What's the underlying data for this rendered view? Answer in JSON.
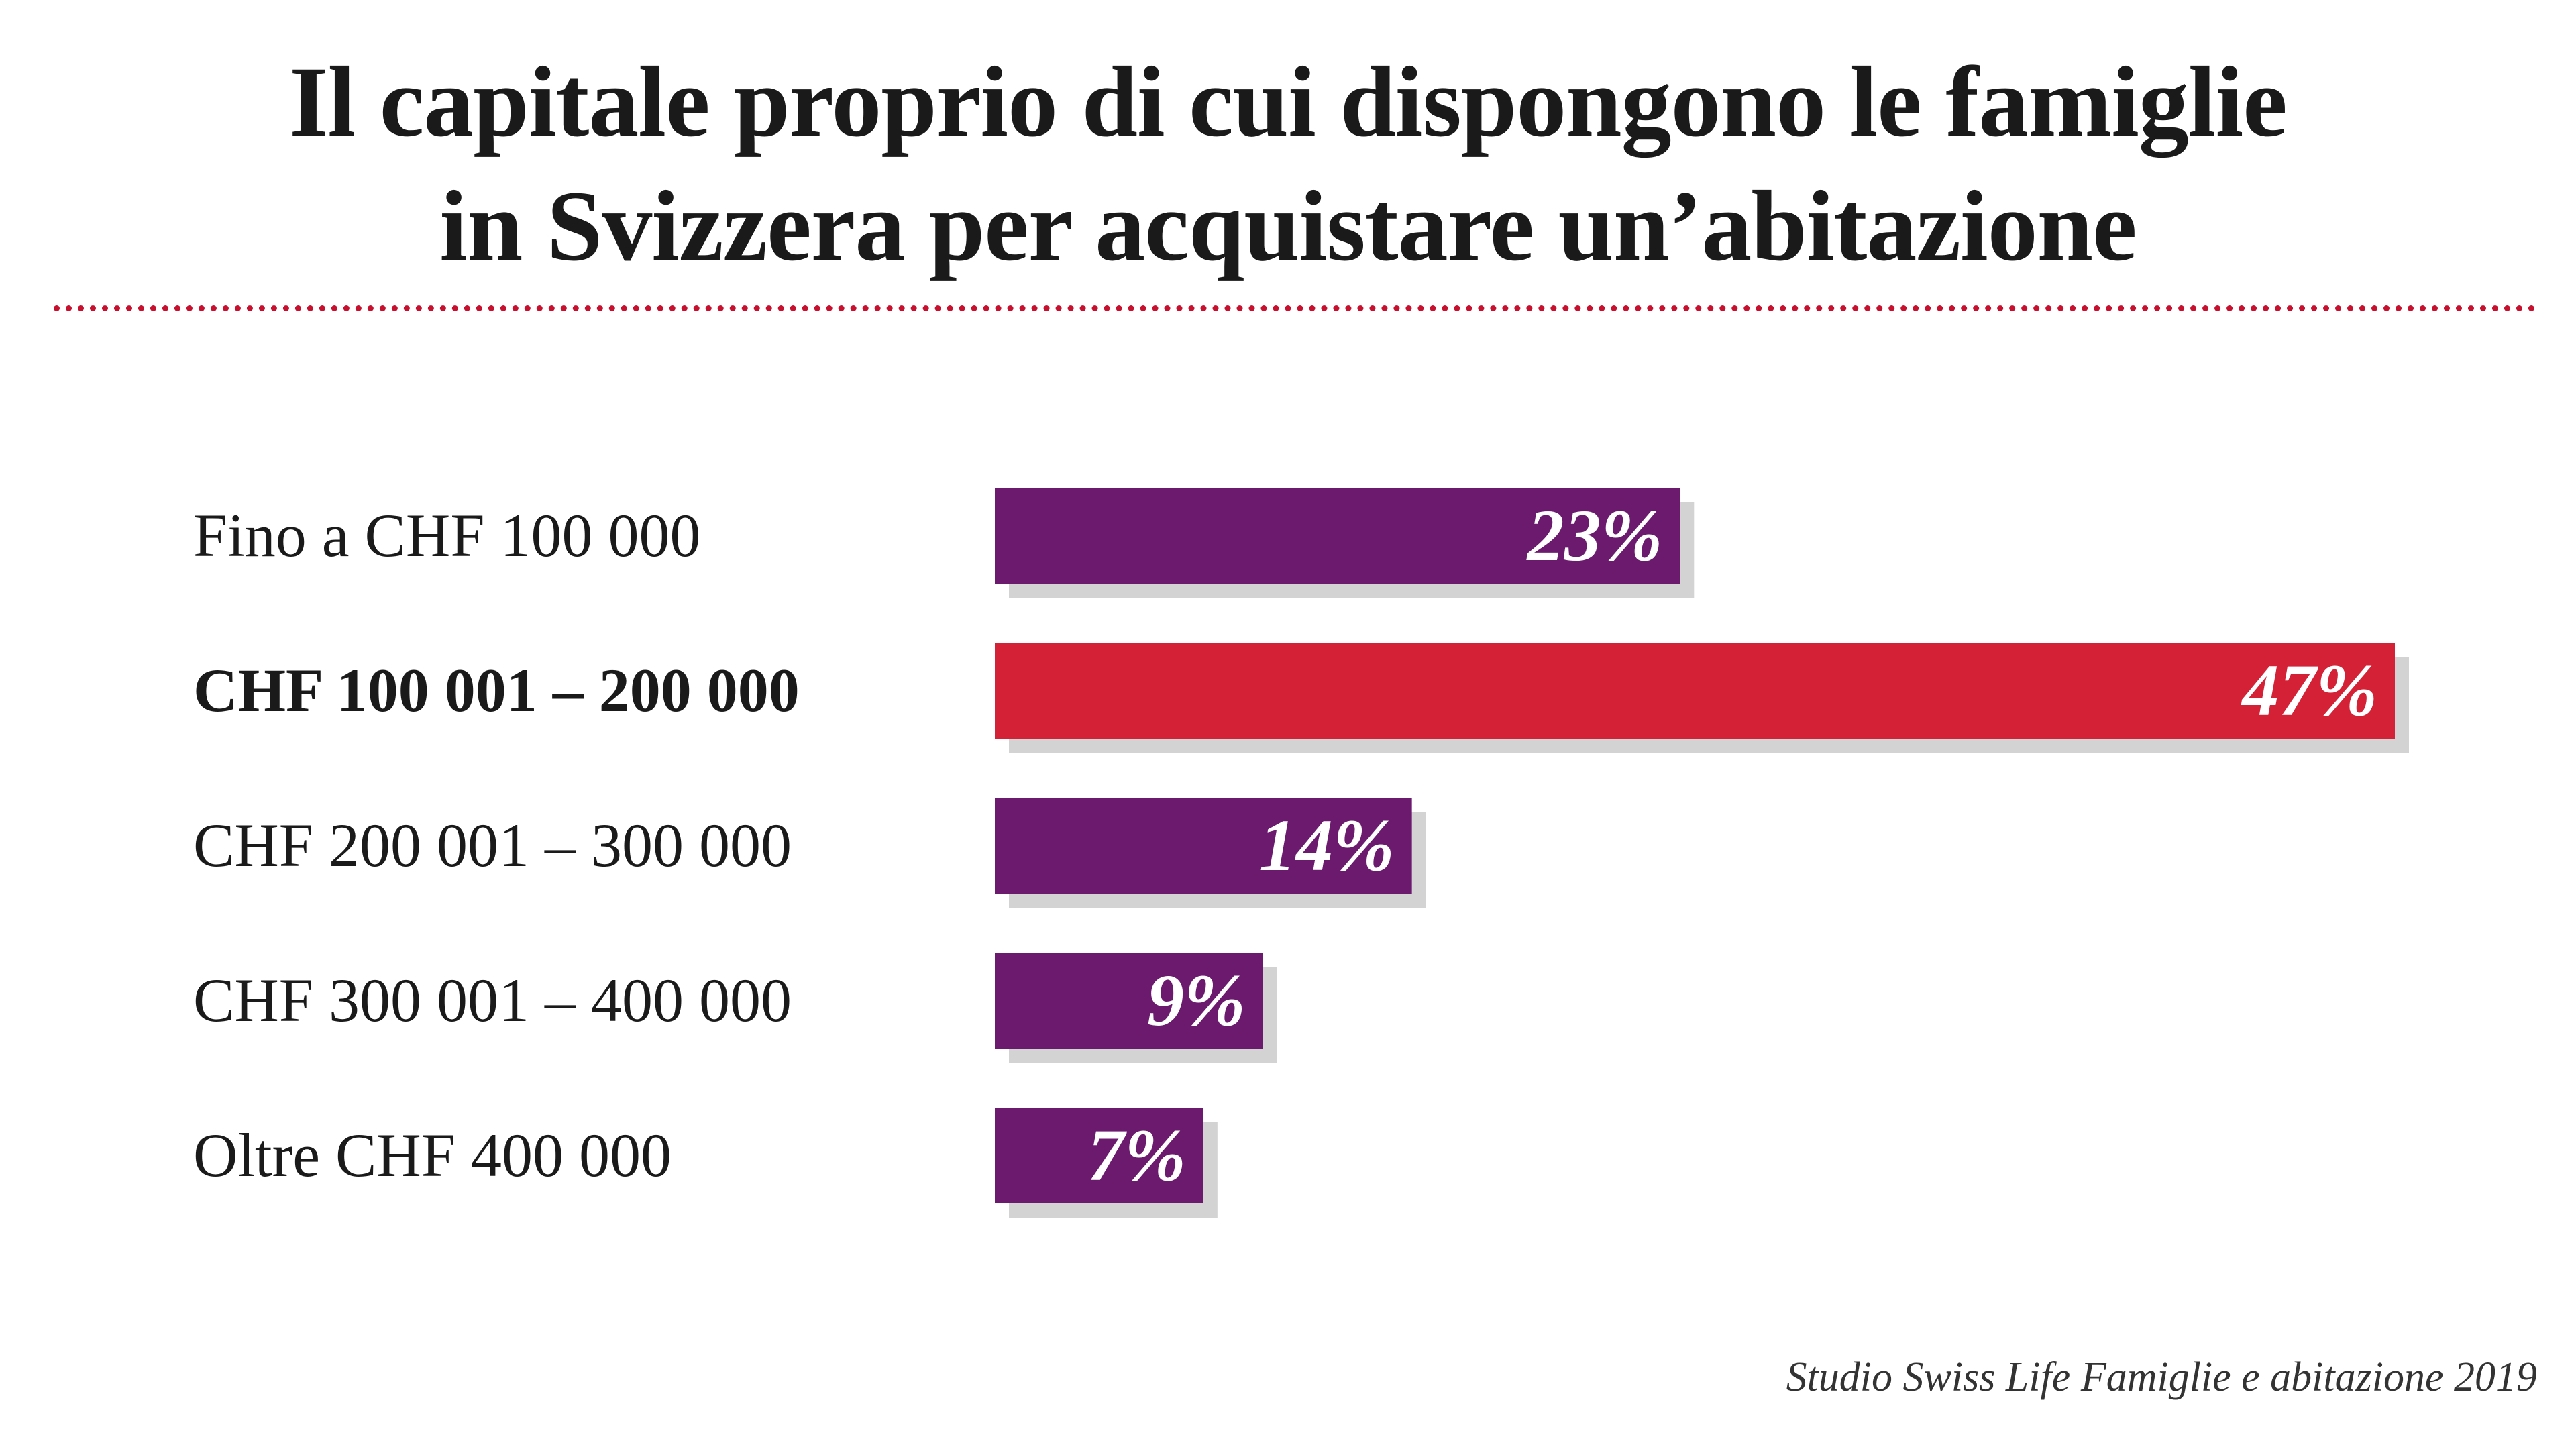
{
  "chart_data": {
    "type": "bar",
    "orientation": "horizontal",
    "title_lines": [
      "Il capitale proprio di cui dispongono le famiglie",
      "in Svizzera per acquistare un’abitazione"
    ],
    "categories": [
      "Fino a CHF 100 000",
      "CHF 100 001 – 200 000",
      "CHF 200 001 – 300 000",
      "CHF 300 001 – 400 000",
      "Oltre CHF 400 000"
    ],
    "values": [
      23,
      47,
      14,
      9,
      7
    ],
    "value_labels": [
      "23%",
      "47%",
      "14%",
      "9%",
      "7%"
    ],
    "highlight_index": 1,
    "unit": "%",
    "xlim": [
      0,
      47
    ],
    "source": "Studio Swiss Life Famiglie e abitazione 2019"
  },
  "colors": {
    "bar": "#6b1a6e",
    "highlight": "#d42135",
    "shadow": "#d3d3d3",
    "label_text": "#ffffff",
    "divider": "#c8102e"
  }
}
